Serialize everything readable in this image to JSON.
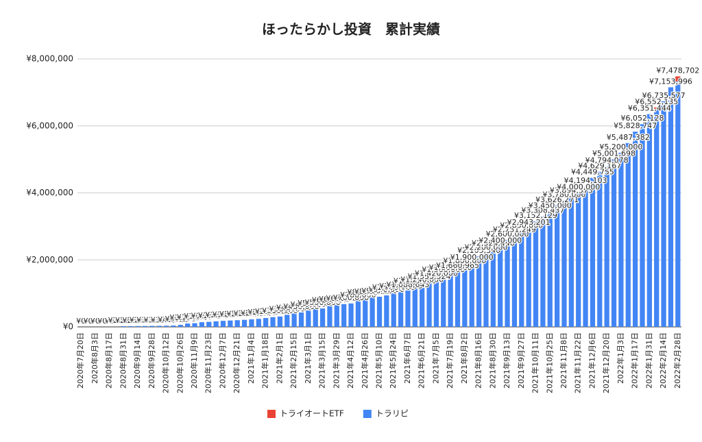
{
  "chart_data": {
    "type": "bar",
    "stacked": true,
    "title": "ほったらかし投資　累計実績",
    "categories": [
      "2020年7月20日",
      null,
      "2020年8月3日",
      null,
      "2020年8月17日",
      null,
      "2020年8月31日",
      null,
      "2020年9月14日",
      null,
      "2020年9月28日",
      null,
      "2020年10月12日",
      null,
      "2020年10月26日",
      null,
      "2020年11月9日",
      null,
      "2020年11月23日",
      null,
      "2020年12月7日",
      null,
      "2020年12月21日",
      null,
      "2021年1月4日",
      null,
      "2021年1月18日",
      null,
      "2021年2月1日",
      null,
      "2021年2月15日",
      null,
      "2021年3月1日",
      null,
      "2021年3月15日",
      null,
      "2021年3月29日",
      null,
      "2021年4月12日",
      null,
      "2021年4月26日",
      null,
      "2021年5月10日",
      null,
      "2021年5月24日",
      null,
      "2021年6月7日",
      null,
      "2021年6月21日",
      null,
      "2021年7月5日",
      null,
      "2021年7月19日",
      null,
      "2021年8月2日",
      null,
      "2021年8月16日",
      null,
      "2021年8月30日",
      null,
      "2021年9月13日",
      null,
      "2021年9月27日",
      null,
      "2021年10月11日",
      null,
      "2021年10月25日",
      null,
      "2021年11月8日",
      null,
      "2021年11月22日",
      null,
      "2021年12月6日",
      null,
      "2021年12月20日",
      null,
      "2022年1月3日",
      null,
      "2022年1月17日",
      null,
      "2022年1月31日",
      null,
      "2022年2月14日",
      null,
      "2022年2月28日"
    ],
    "series": [
      {
        "name": "トラリピ",
        "color": "#4285f4",
        "values": [
          0,
          0,
          0,
          0,
          0,
          0,
          20000,
          22000,
          25000,
          27000,
          30000,
          32000,
          35000,
          40000,
          60000,
          100000,
          110000,
          140000,
          150000,
          165000,
          180000,
          190000,
          200000,
          210000,
          225000,
          240000,
          265000,
          290000,
          310000,
          360000,
          400000,
          430000,
          490000,
          530000,
          550000,
          620000,
          650000,
          680000,
          700000,
          780000,
          860000,
          880000,
          900000,
          940000,
          1000000,
          1040000,
          1088643,
          1200000,
          1240000,
          1333324,
          1420000,
          1530000,
          1600000,
          1660965,
          1800000,
          1900000,
          2105340,
          2200000,
          2324446,
          2400000,
          2600000,
          2731249,
          2850000,
          2943201,
          3152129,
          3308437,
          3450000,
          3626271,
          3780000,
          3894575,
          4000000,
          4194103,
          4449755,
          4629167,
          4794078,
          5001698,
          5200000,
          5487382,
          5828747,
          6052128,
          6351444,
          6502135,
          6735577,
          7153996,
          7328702
        ]
      },
      {
        "name": "トライオートETF",
        "color": "#ea4335",
        "values": [
          null,
          null,
          null,
          null,
          null,
          null,
          null,
          null,
          null,
          null,
          null,
          null,
          null,
          null,
          null,
          null,
          null,
          null,
          null,
          null,
          null,
          null,
          null,
          null,
          null,
          null,
          null,
          null,
          null,
          null,
          null,
          null,
          null,
          null,
          null,
          null,
          null,
          null,
          null,
          null,
          null,
          null,
          null,
          null,
          null,
          null,
          null,
          null,
          null,
          null,
          null,
          null,
          null,
          null,
          null,
          null,
          null,
          null,
          null,
          null,
          null,
          null,
          null,
          null,
          null,
          null,
          null,
          null,
          null,
          null,
          null,
          null,
          null,
          null,
          null,
          null,
          null,
          null,
          null,
          null,
          null,
          50000,
          null,
          null,
          150000
        ]
      }
    ],
    "data_labels": [
      "¥0",
      "¥0",
      "¥0",
      "¥0",
      "¥0",
      "¥0",
      "¥20,000",
      "¥22,000",
      "¥25,000",
      "¥27,000",
      "¥30,000",
      "¥32,000",
      "¥35,000",
      "¥40,000",
      "¥60,000",
      "¥100,000",
      "¥110,000",
      "¥140,000",
      "¥150,000",
      "¥165,000",
      "¥180,000",
      "¥190,000",
      "¥200,000",
      "¥210,000",
      "¥225,000",
      "¥240,000",
      "¥265,000",
      "¥290,000",
      "¥310,000",
      "¥360,000",
      "¥400,000",
      "¥430,000",
      "¥490,000",
      "¥530,000",
      "¥550,000",
      "¥620,000",
      "¥650,000",
      "¥680,000",
      "¥700,000",
      "¥780,000",
      "¥860,000",
      "¥880,000",
      "¥900,000",
      "¥940,000",
      "¥1,000,000",
      "¥1,040,000",
      "¥1,088,643",
      "¥1,200,000",
      "¥1,240,000",
      "¥1,333,324",
      "¥1,420,000",
      "¥1,530,000",
      "¥1,600,000",
      "¥1,660,965",
      "¥1,800,000",
      "¥1,900,000",
      "¥2,105,340",
      "¥2,200,000",
      "¥2,324,446",
      "¥2,400,000",
      "¥2,600,000",
      "¥2,731,249",
      "¥2,850,000",
      "¥2,943,201",
      "¥3,152,129",
      "¥3,308,437",
      "¥3,450,000",
      "¥3,626,271",
      "¥3,780,000",
      "¥3,894,575",
      "¥4,000,000",
      "¥4,194,103",
      "¥4,449,755",
      "¥4,629,167",
      "¥4,794,078",
      "¥5,001,698",
      "¥5,200,000",
      "¥5,487,382",
      "¥5,828,747",
      "¥6,052,128",
      "¥6,351,444",
      "¥6,552,135",
      "¥6,735,577",
      "¥7,153,996",
      "¥7,478,702"
    ],
    "ylim": [
      0,
      8000000
    ],
    "yticks": [
      {
        "value": 0,
        "label": "¥0"
      },
      {
        "value": 2000000,
        "label": "¥2,000,000"
      },
      {
        "value": 4000000,
        "label": "¥4,000,000"
      },
      {
        "value": 6000000,
        "label": "¥6,000,000"
      },
      {
        "value": 8000000,
        "label": "¥8,000,000"
      }
    ],
    "grid": true,
    "legend": "bottom"
  }
}
